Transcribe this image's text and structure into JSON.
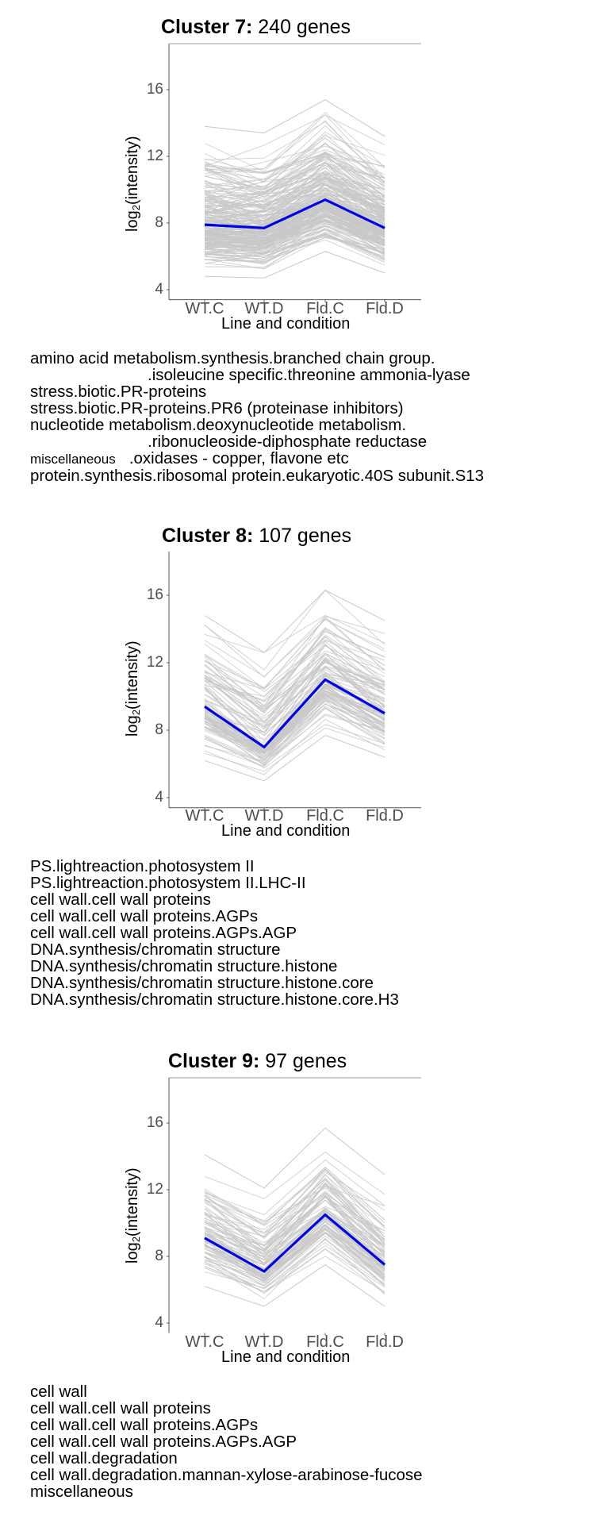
{
  "chart_data": [
    {
      "type": "line",
      "title": "Cluster 7: 240 genes",
      "title_bold": "Cluster 7:",
      "title_rest": "240 genes",
      "gene_count": 240,
      "categories": [
        "WT.C",
        "WT.D",
        "Fld.C",
        "Fld.D"
      ],
      "xlabel": "Line and condition",
      "ylabel": "log2(intensity)",
      "yticks": [
        4,
        8,
        12,
        16
      ],
      "ylim": [
        3.4,
        18.9
      ],
      "grid": false,
      "series": [
        {
          "name": "cluster mean",
          "color": "#0000e6",
          "values": [
            7.9,
            7.7,
            9.4,
            7.7
          ]
        }
      ],
      "envelope": {
        "color": "#c8c8c8",
        "max": [
          13.8,
          13.4,
          15.4,
          13.2
        ],
        "min": [
          4.8,
          4.7,
          6.3,
          5.0
        ]
      },
      "top_border": true,
      "bottom_border": true
    },
    {
      "type": "line",
      "title": "Cluster 8: 107 genes",
      "title_bold": "Cluster 8:",
      "title_rest": "107 genes",
      "gene_count": 107,
      "categories": [
        "WT.C",
        "WT.D",
        "Fld.C",
        "Fld.D"
      ],
      "xlabel": "Line and condition",
      "ylabel": "log2(intensity)",
      "yticks": [
        4,
        8,
        12,
        16
      ],
      "ylim": [
        3.4,
        18.9
      ],
      "grid": false,
      "series": [
        {
          "name": "cluster mean",
          "color": "#0000e6",
          "values": [
            9.4,
            7.0,
            11.0,
            9.0
          ]
        }
      ],
      "envelope": {
        "color": "#c8c8c8",
        "max": [
          14.8,
          12.6,
          16.3,
          14.5
        ],
        "min": [
          6.2,
          5.0,
          7.7,
          6.4
        ]
      },
      "top_border": false,
      "bottom_border": true
    },
    {
      "type": "line",
      "title": "Cluster 9: 97 genes",
      "title_bold": "Cluster 9:",
      "title_rest": "97 genes",
      "gene_count": 97,
      "categories": [
        "WT.C",
        "WT.D",
        "Fld.C",
        "Fld.D"
      ],
      "xlabel": "Line and condition",
      "ylabel": "log2(intensity)",
      "yticks": [
        4,
        8,
        12,
        16
      ],
      "ylim": [
        3.4,
        18.9
      ],
      "grid": false,
      "series": [
        {
          "name": "cluster mean",
          "color": "#0000e6",
          "values": [
            9.1,
            7.1,
            10.5,
            7.5
          ]
        }
      ],
      "envelope": {
        "color": "#c8c8c8",
        "max": [
          14.1,
          12.1,
          15.7,
          12.9
        ],
        "min": [
          6.2,
          5.0,
          7.5,
          5.0
        ]
      },
      "top_border": true,
      "bottom_border": false
    }
  ],
  "clusters": [
    {
      "annotations": [
        {
          "text": "amino acid metabolism.synthesis.branched chain group.",
          "style": "normal"
        },
        {
          "text": ".isoleucine specific.threonine ammonia-lyase",
          "style": "indent"
        },
        {
          "text": "stress.biotic.PR-proteins",
          "style": "normal"
        },
        {
          "text": "stress.biotic.PR-proteins.PR6 (proteinase inhibitors)",
          "style": "normal"
        },
        {
          "text": "nucleotide metabolism.deoxynucleotide metabolism.",
          "style": "normal"
        },
        {
          "text": ".ribonucleoside-diphosphate reductase",
          "style": "indent"
        },
        {
          "text": "miscellaneous",
          "style": "small",
          "suffix": "   .oxidases - copper, flavone etc"
        },
        {
          "text": "protein.synthesis.ribosomal protein.eukaryotic.40S subunit.S13",
          "style": "normal"
        }
      ]
    },
    {
      "annotations": [
        {
          "text": "PS.lightreaction.photosystem II",
          "style": "normal"
        },
        {
          "text": "PS.lightreaction.photosystem II.LHC-II",
          "style": "normal"
        },
        {
          "text": "cell wall.cell wall proteins",
          "style": "normal"
        },
        {
          "text": "cell wall.cell wall proteins.AGPs",
          "style": "normal"
        },
        {
          "text": "cell wall.cell wall proteins.AGPs.AGP",
          "style": "normal"
        },
        {
          "text": "DNA.synthesis/chromatin structure",
          "style": "normal"
        },
        {
          "text": "DNA.synthesis/chromatin structure.histone",
          "style": "normal"
        },
        {
          "text": "DNA.synthesis/chromatin structure.histone.core",
          "style": "normal"
        },
        {
          "text": "DNA.synthesis/chromatin structure.histone.core.H3",
          "style": "normal"
        }
      ]
    },
    {
      "annotations": [
        {
          "text": "cell wall",
          "style": "normal"
        },
        {
          "text": "cell wall.cell wall proteins",
          "style": "normal"
        },
        {
          "text": "cell wall.cell wall proteins.AGPs",
          "style": "normal"
        },
        {
          "text": "cell wall.cell wall proteins.AGPs.AGP",
          "style": "normal"
        },
        {
          "text": "cell wall.degradation",
          "style": "normal"
        },
        {
          "text": "cell wall.degradation.mannan-xylose-arabinose-fucose",
          "style": "normal"
        },
        {
          "text": "miscellaneous",
          "style": "normal"
        }
      ]
    }
  ],
  "axis": {
    "ylabel_main": "log",
    "ylabel_sub": "2",
    "ylabel_rest": "(intensity)"
  }
}
